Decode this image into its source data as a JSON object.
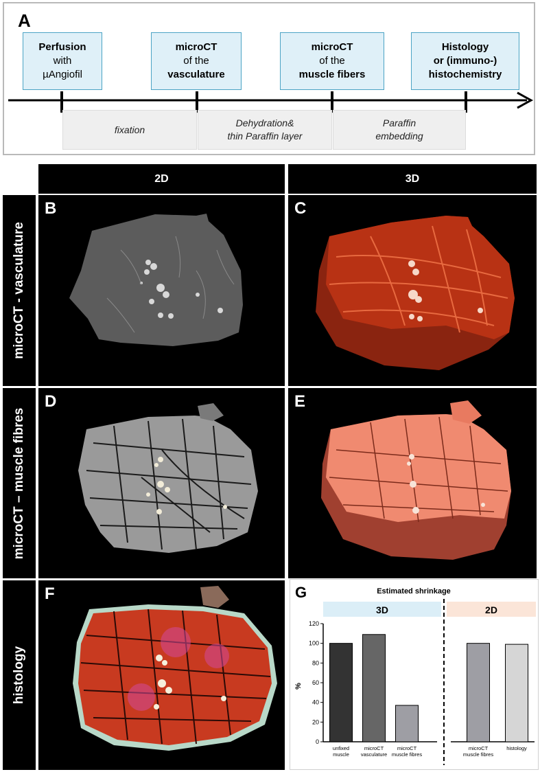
{
  "panel_a": {
    "letter": "A",
    "steps": [
      {
        "l1": "Perfusion",
        "l2": "with",
        "l3": "µAngiofil"
      },
      {
        "l1": "microCT",
        "l2": "of the",
        "l3": "vasculature"
      },
      {
        "l1": "microCT",
        "l2": "of the",
        "l3": "muscle fibers"
      },
      {
        "l1": "Histology",
        "l2": "or (immuno-)",
        "l3": "histochemistry"
      }
    ],
    "processes": [
      {
        "l1": "fixation",
        "l2": ""
      },
      {
        "l1": "Dehydration&",
        "l2": "thin Paraffin layer"
      },
      {
        "l1": "Paraffin",
        "l2": "embedding"
      }
    ]
  },
  "headers": {
    "col_2d": "2D",
    "col_3d": "3D"
  },
  "rows": {
    "vasculature": "microCT - vasculature",
    "muscle": "microCT – muscle fibres",
    "histology": "histology"
  },
  "panel_letters": {
    "b": "B",
    "c": "C",
    "d": "D",
    "e": "E",
    "f": "F",
    "g": "G"
  },
  "colors": {
    "timeline_box_fill": "#dff0f8",
    "timeline_box_border": "#4aa3c4",
    "vasculature_3d": "#b83214",
    "muscle_3d": "#f08a70",
    "histology_tissue": "#c83a20",
    "band_3d": "#dbeef7",
    "band_2d": "#fbe5d8"
  },
  "chart_data": {
    "type": "bar",
    "title": "Estimated shrinkage",
    "ylabel": "%",
    "xlabel": "",
    "ylim": [
      0,
      120
    ],
    "yticks": [
      0,
      20,
      40,
      60,
      80,
      100,
      120
    ],
    "group_labels": [
      "3D",
      "2D"
    ],
    "categories": [
      {
        "line1": "unfixed",
        "line2": "muscle",
        "group": "3D",
        "value": 100,
        "color": "#333333"
      },
      {
        "line1": "microCT",
        "line2": "vasculature",
        "group": "3D",
        "value": 109,
        "color": "#666666"
      },
      {
        "line1": "microCT",
        "line2": "muscle fibres",
        "group": "3D",
        "value": 37,
        "color": "#9e9ea4"
      },
      {
        "line1": "microCT",
        "line2": "muscle fibres",
        "group": "2D",
        "value": 100,
        "color": "#9e9ea4"
      },
      {
        "line1": "histology",
        "line2": "",
        "group": "2D",
        "value": 99,
        "color": "#d6d6d6"
      }
    ]
  }
}
